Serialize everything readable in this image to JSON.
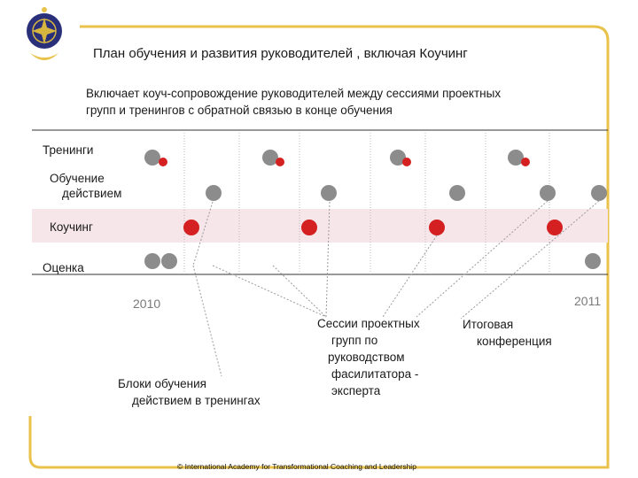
{
  "title": "План обучения и развития руководителей , включая Коучинг",
  "subtitle": {
    "line1": "Включает коуч-сопровождение руководителей между сессиями проектных",
    "line2": "групп и  тренингов с обратной связью в конце обучения"
  },
  "rows": {
    "training": "Тренинги",
    "action_learning_1": "Обучение",
    "action_learning_2": "действием",
    "coaching": "Коучинг",
    "evaluation": "Оценка"
  },
  "years": {
    "start": "2010",
    "end": "2011"
  },
  "notes": {
    "blocks_1": "Блоки обучения",
    "blocks_2": "действием  в тренингах",
    "sessions_1": "Сессии проектных",
    "sessions_2": "групп по",
    "sessions_3": "руководством",
    "sessions_4": "фасилитатора -",
    "sessions_5": "эксперта",
    "final_1": "Итоговая",
    "final_2": "конференция"
  },
  "footer": "© International Academy for Transformational Coaching and Leadership",
  "colors": {
    "frame": "#e8c24a",
    "gray_dot": "#8c8c8c",
    "red_dot": "#d42020",
    "coaching_band": "#f6e6ea",
    "logo": "#2a2f7a"
  }
}
